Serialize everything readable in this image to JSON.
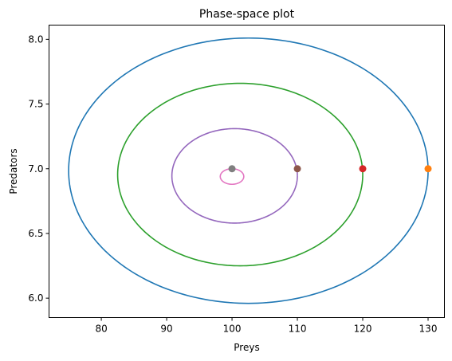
{
  "chart_data": {
    "type": "line",
    "title": "Phase-space plot",
    "xlabel": "Preys",
    "ylabel": "Predators",
    "xlim": [
      72.0,
      132.5
    ],
    "ylim": [
      5.85,
      8.11
    ],
    "grid": false,
    "legend": "none",
    "x_ticks": [
      "80",
      "90",
      "100",
      "110",
      "120",
      "130"
    ],
    "y_ticks": [
      "6.0",
      "6.5",
      "7.0",
      "7.5",
      "8.0"
    ],
    "series": [
      {
        "color": "#1f77b4",
        "x_range": [
          75.0,
          130.0
        ],
        "y_range": [
          5.96,
          8.01
        ],
        "start_point": {
          "x": 130,
          "y": 7.0,
          "color": "#ff7f0e"
        }
      },
      {
        "color": "#2ca02c",
        "x_range": [
          82.5,
          120.0
        ],
        "y_range": [
          6.25,
          7.66
        ],
        "start_point": {
          "x": 120,
          "y": 7.0,
          "color": "#d62728"
        }
      },
      {
        "color": "#9467bd",
        "x_range": [
          90.8,
          110.0
        ],
        "y_range": [
          6.58,
          7.31
        ],
        "start_point": {
          "x": 110,
          "y": 7.0,
          "color": "#8c564b"
        }
      },
      {
        "color": "#e377c2",
        "x_range": [
          98.2,
          101.8
        ],
        "y_range": [
          6.88,
          7.0
        ],
        "start_point": {
          "x": 100,
          "y": 7.0,
          "color": "#7f7f7f"
        }
      }
    ]
  }
}
